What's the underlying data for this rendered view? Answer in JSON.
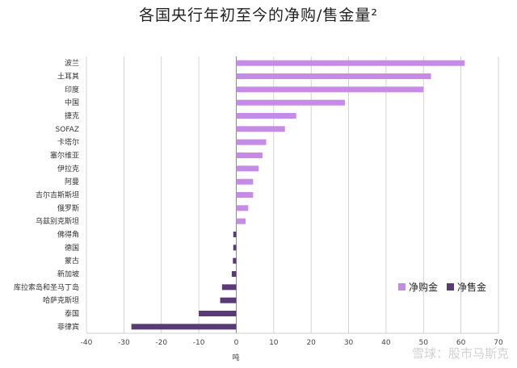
{
  "chart_data": {
    "type": "bar",
    "orientation": "horizontal",
    "title": "各国央行年初至今的净购/售金量²",
    "xlabel": "吨",
    "xlim": [
      -40,
      70
    ],
    "xticks": [
      -40,
      -30,
      -20,
      -10,
      0,
      10,
      20,
      30,
      40,
      50,
      60,
      70
    ],
    "grid": true,
    "legend_placement": "bottom-right",
    "categories": [
      "波兰",
      "土耳其",
      "印度",
      "中国",
      "捷克",
      "SOFAZ",
      "卡塔尔",
      "塞尔维亚",
      "伊拉克",
      "阿曼",
      "吉尔吉斯斯坦",
      "俄罗斯",
      "乌兹别克斯坦",
      "佛得角",
      "德国",
      "蒙古",
      "新加坡",
      "库拉索岛和圣马丁岛",
      "哈萨克斯坦",
      "泰国",
      "菲律宾"
    ],
    "values": [
      61,
      52,
      50,
      29,
      16,
      13,
      8,
      7,
      6,
      4.5,
      4.5,
      3.2,
      2.5,
      -0.8,
      -0.8,
      -0.9,
      -1.2,
      -3.8,
      -4.3,
      -10,
      -28
    ],
    "series": [
      {
        "name": "净购金",
        "color": "#c58be6"
      },
      {
        "name": "净售金",
        "color": "#5b3a78"
      }
    ]
  },
  "watermark": "雪球：股市马斯克"
}
